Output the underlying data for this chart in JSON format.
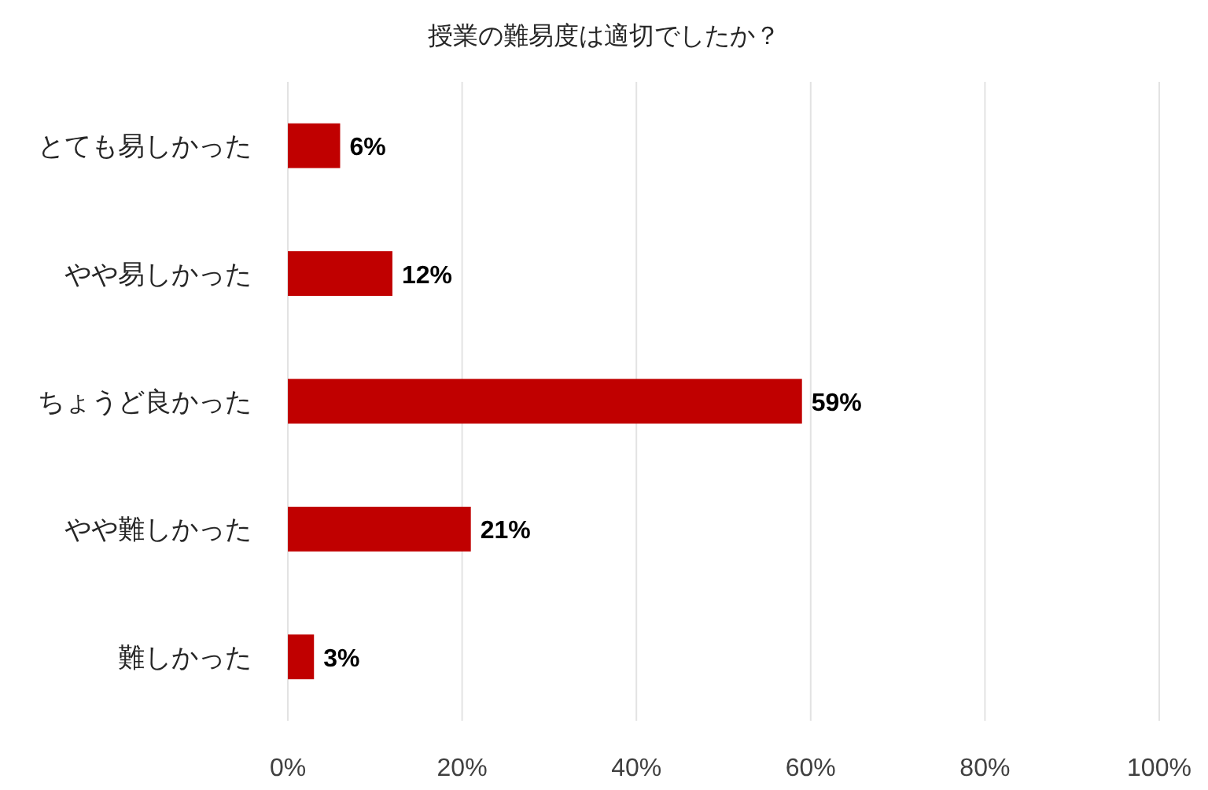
{
  "chart_data": {
    "type": "bar",
    "orientation": "horizontal",
    "title": "授業の難易度は適切でしたか？",
    "categories": [
      "とても易しかった",
      "やや易しかった",
      "ちょうど良かった",
      "やや難しかった",
      "難しかった"
    ],
    "values": [
      6,
      12,
      59,
      21,
      3
    ],
    "color": "#c00000",
    "value_labels": [
      "6%",
      "12%",
      "59%",
      "21%",
      "3%"
    ],
    "xlim": [
      0,
      100
    ],
    "xticks": [
      {
        "value": 0,
        "label": "0%"
      },
      {
        "value": 20,
        "label": "20%"
      },
      {
        "value": 40,
        "label": "40%"
      },
      {
        "value": 60,
        "label": "60%"
      },
      {
        "value": 80,
        "label": "80%"
      },
      {
        "value": 100,
        "label": "100%"
      }
    ],
    "grid": "x"
  }
}
